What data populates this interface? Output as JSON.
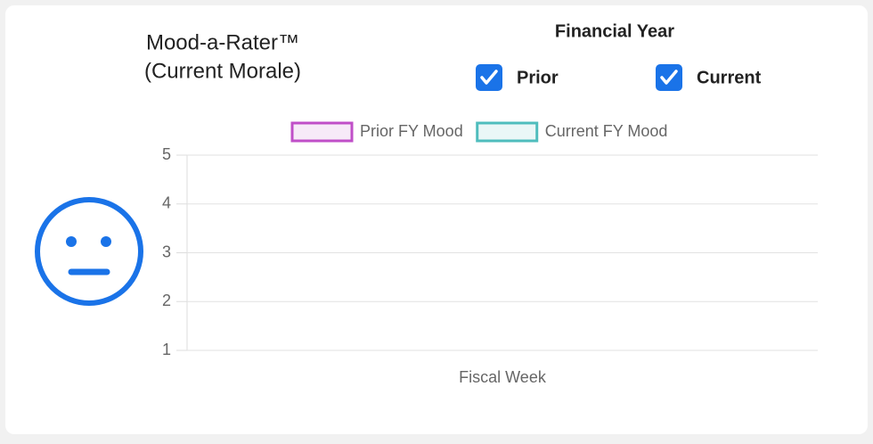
{
  "widget": {
    "title": [
      "Mood-a-Rater™",
      "(Current Morale)"
    ]
  },
  "filters": {
    "title": "Financial Year",
    "options": [
      {
        "label": "Prior",
        "checked": true
      },
      {
        "label": "Current",
        "checked": true
      }
    ]
  },
  "chart_data": {
    "type": "line",
    "x_label": "Fiscal Week",
    "categories": [],
    "series": [
      {
        "name": "Prior FY Mood",
        "color": "#c04fc8",
        "values": []
      },
      {
        "name": "Current FY Mood",
        "color": "#4fbdbd",
        "values": []
      }
    ],
    "ylim": [
      1,
      5
    ],
    "yticks": [
      1,
      2,
      3,
      4,
      5
    ],
    "grid": true,
    "legend": "top"
  }
}
